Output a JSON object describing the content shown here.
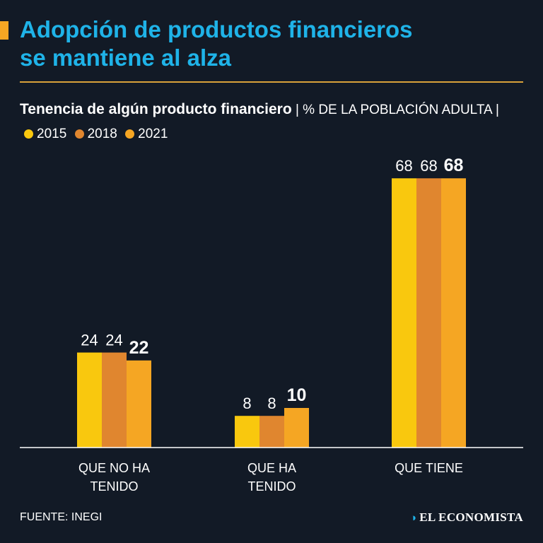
{
  "title_lines": [
    "Adopción de productos financieros",
    "se mantiene al alza"
  ],
  "subtitle": {
    "bold": "Tenencia de algún producto financiero",
    "sep": "|",
    "unit": "% DE LA POBLACIÓN ADULTA",
    "sep2": "|"
  },
  "source": "FUENTE: INEGI",
  "brand": "EL ECONOMISTA",
  "colors": {
    "s2015": "#f9c80e",
    "s2018": "#e0862f",
    "s2021": "#f5a623",
    "text": "#ffffff",
    "axis": "#ffffff"
  },
  "chart_data": {
    "type": "bar",
    "title": "Tenencia de algún producto financiero",
    "ylabel": "% de la población adulta",
    "categories": [
      "QUE NO HA TENIDO",
      "QUE HA TENIDO",
      "QUE TIENE"
    ],
    "category_lines": [
      [
        "QUE NO HA",
        "TENIDO"
      ],
      [
        "QUE HA",
        "TENIDO"
      ],
      [
        "QUE TIENE"
      ]
    ],
    "series": [
      {
        "name": "2015",
        "values": [
          24,
          8,
          68
        ],
        "color": "#f9c80e"
      },
      {
        "name": "2018",
        "values": [
          24,
          8,
          68
        ],
        "color": "#e0862f"
      },
      {
        "name": "2021",
        "values": [
          22,
          10,
          68
        ],
        "color": "#f5a623"
      }
    ],
    "ylim": [
      0,
      70
    ],
    "legend": "top-left",
    "grid": false
  }
}
